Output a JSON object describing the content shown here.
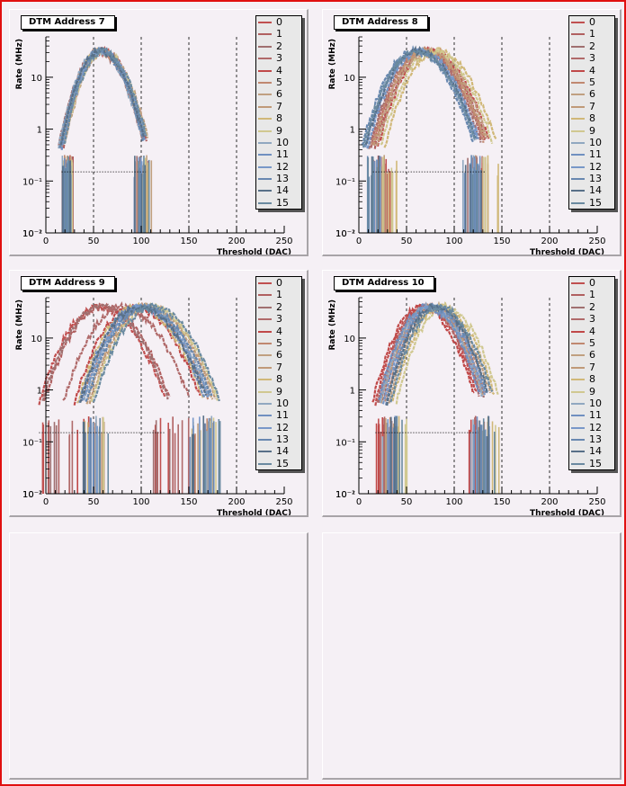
{
  "pads": [
    {
      "title": "DTM Address 7",
      "chart_data": {
        "type": "line",
        "title": "DTM Address 7",
        "xlabel": "Threshold (DAC)",
        "ylabel": "Rate (MHz)",
        "xlim": [
          0,
          250
        ],
        "ylim": [
          0.01,
          60
        ],
        "yscale": "log",
        "x_ticks": [
          "0",
          "50",
          "100",
          "150",
          "200",
          "250"
        ],
        "y_ticks": [
          "10",
          "1",
          "10⁻¹",
          "10⁻²",
          "10⁻¹"
        ],
        "grid": "x-dashed",
        "legend": "top-right",
        "legend_entries": [
          "0",
          "1",
          "2",
          "3",
          "4",
          "5",
          "6",
          "7",
          "8",
          "9",
          "10",
          "11",
          "12",
          "13",
          "14",
          "15"
        ],
        "series_shape": {
          "peak_center_x": [
            58,
            60,
            55,
            57,
            59,
            56,
            61,
            58,
            57,
            60,
            55,
            58,
            59,
            56,
            57,
            60
          ],
          "peak_rate": 32,
          "width": 18
        }
      }
    },
    {
      "title": "DTM Address 8",
      "chart_data": {
        "type": "line",
        "title": "DTM Address 8",
        "xlabel": "Threshold (DAC)",
        "ylabel": "Rate (MHz)",
        "xlim": [
          0,
          250
        ],
        "ylim": [
          0.01,
          60
        ],
        "yscale": "log",
        "x_ticks": [
          "0",
          "50",
          "100",
          "150",
          "200",
          "250"
        ],
        "y_ticks": [
          "10",
          "1",
          "10⁻¹",
          "10⁻²",
          "10⁻¹"
        ],
        "grid": "x-dashed",
        "legend": "top-right",
        "legend_entries": [
          "0",
          "1",
          "2",
          "3",
          "4",
          "5",
          "6",
          "7",
          "8",
          "9",
          "10",
          "11",
          "12",
          "13",
          "14",
          "15"
        ],
        "series_shape": {
          "peak_center_x": [
            70,
            72,
            66,
            68,
            75,
            69,
            74,
            71,
            82,
            78,
            60,
            62,
            64,
            58,
            62,
            60
          ],
          "peak_rate": 32,
          "width": 24
        }
      }
    },
    {
      "title": "DTM Address 9",
      "chart_data": {
        "type": "line",
        "title": "DTM Address 9",
        "xlabel": "Threshold (DAC)",
        "ylabel": "Rate (MHz)",
        "xlim": [
          0,
          250
        ],
        "ylim": [
          0.01,
          60
        ],
        "yscale": "log",
        "x_ticks": [
          "0",
          "50",
          "100",
          "150",
          "200",
          "250"
        ],
        "y_ticks": [
          "10",
          "1",
          "10⁻¹",
          "10⁻²",
          "10⁻¹"
        ],
        "grid": "x-dashed",
        "legend": "top-right",
        "legend_entries": [
          "0",
          "1",
          "2",
          "3",
          "4",
          "5",
          "6",
          "7",
          "8",
          "9",
          "10",
          "11",
          "12",
          "13",
          "14",
          "15"
        ],
        "series_shape": {
          "peak_center_x": [
            55,
            60,
            58,
            80,
            92,
            100,
            105,
            108,
            95,
            110,
            102,
            97,
            100,
            104,
            98,
            112
          ],
          "peak_rate": 40,
          "width": 27
        }
      }
    },
    {
      "title": "DTM Address 10",
      "chart_data": {
        "type": "line",
        "title": "DTM Address 10",
        "xlabel": "Threshold (DAC)",
        "ylabel": "Rate (MHz)",
        "xlim": [
          0,
          250
        ],
        "ylim": [
          0.01,
          60
        ],
        "yscale": "log",
        "x_ticks": [
          "0",
          "50",
          "100",
          "150",
          "200",
          "250"
        ],
        "y_ticks": [
          "10",
          "1",
          "10⁻¹",
          "10⁻²",
          "10⁻¹"
        ],
        "grid": "x-dashed",
        "legend": "top-right",
        "legend_entries": [
          "0",
          "1",
          "2",
          "3",
          "4",
          "5",
          "6",
          "7",
          "8",
          "9",
          "10",
          "11",
          "12",
          "13",
          "14",
          "15"
        ],
        "series_shape": {
          "peak_center_x": [
            68,
            72,
            75,
            70,
            65,
            78,
            82,
            74,
            86,
            90,
            73,
            71,
            76,
            79,
            80,
            84
          ],
          "peak_rate": 40,
          "width": 22
        }
      }
    }
  ],
  "legend_colors": [
    "#c05050",
    "#b06060",
    "#a07070",
    "#b06a6a",
    "#c04848",
    "#c08870",
    "#c0a080",
    "#c09a78",
    "#d0b878",
    "#d0c890",
    "#90a8c0",
    "#7090c0",
    "#7898c8",
    "#6888b0",
    "#587088",
    "#6a8aa0"
  ],
  "colors": {
    "frame_border": "#e01010",
    "pad_bg": "#f5f0f5",
    "legend_bg": "#e8e8e8"
  }
}
